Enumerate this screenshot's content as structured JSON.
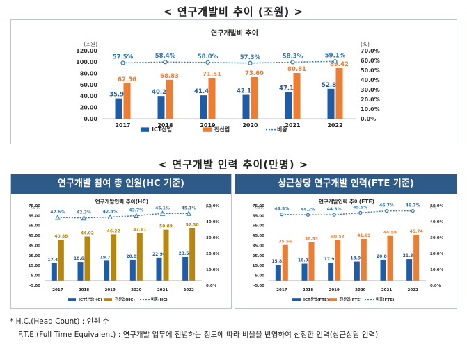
{
  "section1": {
    "title": "< 연구개발비 추이 (조원) >"
  },
  "section2": {
    "title": "< 연구개발 인력 추이(만명) >"
  },
  "panel_hc": {
    "header": "연구개발 참여 총 인원(HC 기준)"
  },
  "panel_fte": {
    "header": "상근상당 연구개발 인력(FTE 기준)"
  },
  "footnotes": {
    "hc": "* H.C.(Head Count) : 인원 수",
    "fte": "F.T.E.(Full Time Equivalent) : 연구개발 업무에 전념하는 정도에 따라 비율을 반영하여 산정한 인력(상근상당 인력)"
  },
  "colors": {
    "ict": "#1f5ca8",
    "total": "#ee7d31",
    "total_hc": "#b8860b",
    "ratio": "#2e75b6",
    "header": "#2e5a87"
  },
  "chart_data": [
    {
      "type": "bar",
      "title": "연구개발비 추이",
      "y_unit": "(조원)",
      "y2_unit": "(%)",
      "categories": [
        "2017",
        "2018",
        "2019",
        "2020",
        "2021",
        "2022"
      ],
      "series": [
        {
          "name": "ICT산업",
          "values": [
            35.95,
            40.22,
            41.44,
            42.16,
            47.12,
            52.89
          ]
        },
        {
          "name": "전산업",
          "values": [
            62.56,
            68.83,
            71.51,
            73.6,
            80.81,
            89.42
          ]
        },
        {
          "name": "비중",
          "axis": "secondary",
          "type": "line",
          "values": [
            57.5,
            58.4,
            58.0,
            57.3,
            58.3,
            59.1
          ],
          "labels": [
            "57.5%",
            "58.4%",
            "58.0%",
            "57.3%",
            "58.3%",
            "59.1%"
          ]
        }
      ],
      "value_labels": {
        "ict": [
          "35.95",
          "40.22",
          "41.44",
          "42.16",
          "47.12",
          "52.89"
        ],
        "total": [
          "62.56",
          "68.83",
          "71.51",
          "73.60",
          "80.81",
          "89.42"
        ]
      },
      "ylim": [
        0,
        120
      ],
      "y_ticks": [
        0,
        20,
        40,
        60,
        80,
        100,
        120
      ],
      "y_tick_labels": [
        "0.00",
        "20.00",
        "40.00",
        "60.00",
        "80.00",
        "100.00",
        "120.00"
      ],
      "y2lim": [
        0,
        70
      ],
      "y2_ticks": [
        0,
        10,
        20,
        30,
        40,
        50,
        60,
        70
      ],
      "y2_tick_labels": [
        "0.0%",
        "10.0%",
        "20.0%",
        "30.0%",
        "40.0%",
        "50.0%",
        "60.0%",
        "70.0%"
      ],
      "legend": [
        "ICT산업",
        "전산업",
        "비중"
      ],
      "legend_position": "bottom"
    },
    {
      "type": "bar",
      "title": "연구개발인력 추이(HC)",
      "y_unit": "(만명)",
      "y2_unit": "(%)",
      "categories": [
        "2017",
        "2018",
        "2019",
        "2020",
        "2021",
        "2022"
      ],
      "series": [
        {
          "name": "ICT산업(HC)",
          "values": [
            17.43,
            18.62,
            19.78,
            20.82,
            22.96,
            23.58
          ]
        },
        {
          "name": "전산업(HC)",
          "values": [
            40.88,
            44.02,
            46.22,
            47.61,
            50.89,
            52.3
          ]
        },
        {
          "name": "비중(HC)",
          "axis": "secondary",
          "type": "line",
          "values": [
            42.6,
            42.3,
            42.8,
            43.7,
            45.1,
            45.1
          ],
          "labels": [
            "42.6%",
            "42.3%",
            "42.8%",
            "43.7%",
            "45.1%",
            "45.1%"
          ]
        }
      ],
      "value_labels": {
        "ict": [
          "17.43",
          "18.62",
          "19.78",
          "20.82",
          "22.96",
          "23.58"
        ],
        "total": [
          "40.88",
          "44.02",
          "46.22",
          "47.61",
          "50.89",
          "52.30"
        ]
      },
      "ylim": [
        -5,
        75
      ],
      "y_ticks": [
        -5,
        5,
        15,
        25,
        35,
        45,
        55,
        65,
        75
      ],
      "y_tick_labels": [
        "-5.00",
        "5.00",
        "15.00",
        "25.00",
        "35.00",
        "45.00",
        "55.00",
        "65.00",
        "75.00"
      ],
      "y2lim": [
        0,
        50
      ],
      "y2_ticks": [
        0,
        10,
        20,
        30,
        40,
        50
      ],
      "y2_tick_labels": [
        "0.0%",
        "10.0%",
        "20.0%",
        "30.0%",
        "40.0%",
        "50.0%"
      ],
      "legend": [
        "ICT산업(HC)",
        "전산업(HC)",
        "비중(HC)"
      ],
      "legend_position": "bottom"
    },
    {
      "type": "bar",
      "title": "연구개발인력 추이(FTE)",
      "y_unit": "(만명)",
      "y2_unit": "(%)",
      "categories": [
        "2017",
        "2018",
        "2019",
        "2020",
        "2021",
        "2022"
      ],
      "series": [
        {
          "name": "ICT산업(FTE)",
          "values": [
            15.82,
            16.93,
            17.95,
            18.96,
            20.81,
            21.38
          ]
        },
        {
          "name": "전산업(FTE)",
          "values": [
            35.56,
            38.33,
            40.52,
            41.69,
            44.58,
            45.74
          ]
        },
        {
          "name": "비중(FTE)",
          "axis": "secondary",
          "type": "line",
          "values": [
            44.5,
            44.2,
            44.3,
            45.5,
            46.7,
            46.7
          ],
          "labels": [
            "44.5%",
            "44.2%",
            "44.3%",
            "45.5%",
            "46.7%",
            "46.7%"
          ]
        }
      ],
      "value_labels": {
        "ict": [
          "15.82",
          "16.93",
          "17.95",
          "18.96",
          "20.81",
          "21.38"
        ],
        "total": [
          "35.56",
          "38.33",
          "40.52",
          "41.69",
          "44.58",
          "45.74"
        ]
      },
      "ylim": [
        -5,
        75
      ],
      "y_ticks": [
        -5,
        5,
        15,
        25,
        35,
        45,
        55,
        65,
        75
      ],
      "y_tick_labels": [
        "-5.00",
        "5.00",
        "15.00",
        "25.00",
        "35.00",
        "45.00",
        "55.00",
        "65.00",
        "75.00"
      ],
      "y2lim": [
        0,
        50
      ],
      "y2_ticks": [
        0,
        10,
        20,
        30,
        40,
        50
      ],
      "y2_tick_labels": [
        "0.0%",
        "10.0%",
        "20.0%",
        "30.0%",
        "40.0%",
        "50.0%"
      ],
      "legend": [
        "ICT산업(FTE)",
        "전산업(FTE)",
        "비중(FTE)"
      ],
      "legend_position": "bottom"
    }
  ]
}
